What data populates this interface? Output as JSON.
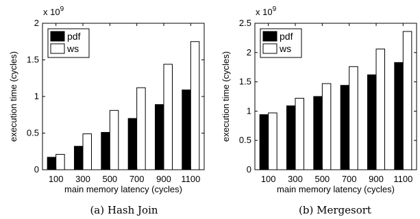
{
  "chart_data": [
    {
      "type": "bar",
      "categories": [
        "100",
        "300",
        "500",
        "700",
        "900",
        "1100"
      ],
      "series": [
        {
          "name": "pdf",
          "values": [
            0.17,
            0.32,
            0.51,
            0.7,
            0.89,
            1.09
          ],
          "color": "#000000"
        },
        {
          "name": "ws",
          "values": [
            0.21,
            0.49,
            0.81,
            1.12,
            1.44,
            1.75
          ],
          "color": "#ffffff"
        }
      ],
      "xlabel": "main memory latency (cycles)",
      "ylabel": "execution time (cycles)",
      "ylim": [
        0,
        2
      ],
      "yticks": [
        0,
        0.5,
        1,
        1.5,
        2
      ],
      "ytick_labels": [
        "0",
        "0.5",
        "1",
        "1.5",
        "2"
      ],
      "multiplier_base": "x 10",
      "multiplier_exp": "9",
      "caption": "(a) Hash Join",
      "grid": false,
      "legend_position": "top-left"
    },
    {
      "type": "bar",
      "categories": [
        "100",
        "300",
        "500",
        "700",
        "900",
        "1100"
      ],
      "series": [
        {
          "name": "pdf",
          "values": [
            0.94,
            1.09,
            1.25,
            1.44,
            1.62,
            1.83
          ],
          "color": "#000000"
        },
        {
          "name": "ws",
          "values": [
            0.97,
            1.22,
            1.47,
            1.76,
            2.06,
            2.36
          ],
          "color": "#ffffff"
        }
      ],
      "xlabel": "main memory latency (cycles)",
      "ylabel": "execution time (cycles)",
      "ylim": [
        0,
        2.5
      ],
      "yticks": [
        0,
        0.5,
        1,
        1.5,
        2,
        2.5
      ],
      "ytick_labels": [
        "0",
        "0.5",
        "1",
        "1.5",
        "2",
        "2.5"
      ],
      "multiplier_base": "x 10",
      "multiplier_exp": "9",
      "caption": "(b) Mergesort",
      "grid": false,
      "legend_position": "top-left"
    }
  ]
}
